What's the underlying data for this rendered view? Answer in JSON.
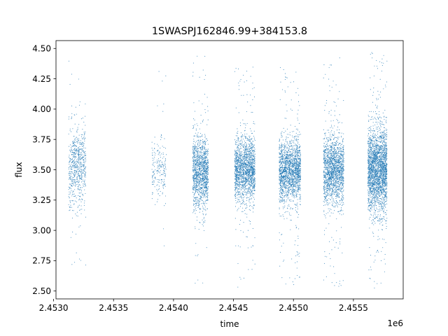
{
  "chart_data": {
    "type": "scatter",
    "title": "1SWASPJ162846.99+384153.8",
    "xlabel": "time",
    "ylabel": "flux",
    "x_offset_label": "1e6",
    "xlim": [
      2453020,
      2455915
    ],
    "ylim": [
      2.435,
      4.565
    ],
    "x_ticks": [
      2453000,
      2453500,
      2454000,
      2454500,
      2455000,
      2455500
    ],
    "x_tick_labels": [
      "2.4530",
      "2.4535",
      "2.4540",
      "2.4545",
      "2.4550",
      "2.4555"
    ],
    "y_ticks": [
      2.5,
      2.75,
      3.0,
      3.25,
      3.5,
      3.75,
      4.0,
      4.25,
      4.5
    ],
    "y_tick_labels": [
      "2.50",
      "2.75",
      "3.00",
      "3.25",
      "3.50",
      "3.75",
      "4.00",
      "4.25",
      "4.50"
    ],
    "grid": false,
    "marker_color": "#1f77b4",
    "observing_seasons": [
      {
        "start": 2453125,
        "end": 2453270,
        "flux_center": 3.52,
        "flux_spread": 0.17,
        "flux_min": 2.6,
        "flux_max": 4.45,
        "density": "medium"
      },
      {
        "start": 2453820,
        "end": 2453850,
        "flux_center": 3.48,
        "flux_spread": 0.1,
        "flux_min": 2.66,
        "flux_max": 3.78,
        "density": "low"
      },
      {
        "start": 2453860,
        "end": 2453940,
        "flux_center": 3.5,
        "flux_spread": 0.12,
        "flux_min": 2.85,
        "flux_max": 4.42,
        "density": "low"
      },
      {
        "start": 2454160,
        "end": 2454290,
        "flux_center": 3.48,
        "flux_spread": 0.15,
        "flux_min": 2.53,
        "flux_max": 4.46,
        "density": "high"
      },
      {
        "start": 2454510,
        "end": 2454680,
        "flux_center": 3.5,
        "flux_spread": 0.13,
        "flux_min": 2.53,
        "flux_max": 4.37,
        "density": "high"
      },
      {
        "start": 2454880,
        "end": 2455060,
        "flux_center": 3.5,
        "flux_spread": 0.13,
        "flux_min": 2.55,
        "flux_max": 4.36,
        "density": "high"
      },
      {
        "start": 2455250,
        "end": 2455420,
        "flux_center": 3.5,
        "flux_spread": 0.14,
        "flux_min": 2.53,
        "flux_max": 4.43,
        "density": "high"
      },
      {
        "start": 2455620,
        "end": 2455780,
        "flux_center": 3.5,
        "flux_spread": 0.17,
        "flux_min": 2.52,
        "flux_max": 4.47,
        "density": "very-high"
      }
    ]
  }
}
